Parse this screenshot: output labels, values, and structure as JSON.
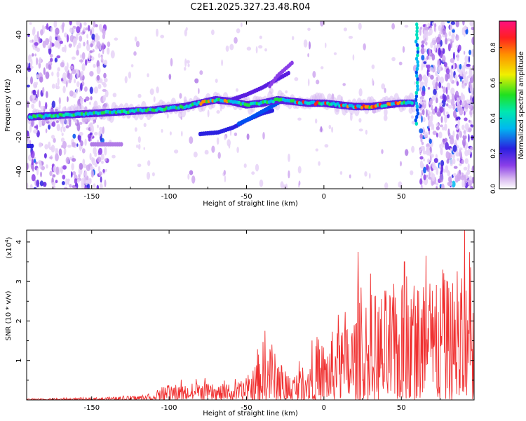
{
  "title": "C2E1.2025.327.23.48.R04",
  "chart_data": [
    {
      "type": "heatmap",
      "xlabel": "Height of straight line (km)",
      "ylabel": "Frequency (Hz)",
      "xlim": [
        -192,
        97
      ],
      "ylim": [
        -50,
        48
      ],
      "xticks": [
        -150,
        -100,
        -50,
        0,
        50
      ],
      "yticks": [
        -40,
        -20,
        0,
        20,
        40
      ],
      "ridge": {
        "x": [
          -190,
          -170,
          -150,
          -130,
          -110,
          -90,
          -80,
          -70,
          -60,
          -50,
          -40,
          -30,
          -20,
          -10,
          0,
          10,
          20,
          30,
          40,
          50,
          58
        ],
        "y": [
          -8,
          -7,
          -6,
          -5,
          -4,
          -2,
          0,
          2,
          1,
          -1,
          0,
          2,
          1,
          0,
          0,
          -1,
          -2,
          -2,
          -1,
          0,
          0
        ]
      },
      "colorbar": {
        "label": "Normalized spectral amplitude",
        "range": [
          0,
          0.95
        ],
        "ticks": [
          "0.0",
          "0.2",
          "0.4",
          "0.6",
          "0.8"
        ]
      }
    },
    {
      "type": "line",
      "xlabel": "Height of straight line (km)",
      "ylabel": "SNR (10 * v/v)",
      "scale_label": "(x10",
      "scale_exp": "4",
      "scale_close": ")",
      "xlim": [
        -192,
        97
      ],
      "ylim": [
        0,
        4.3
      ],
      "xticks": [
        -150,
        -100,
        -50,
        0,
        50
      ],
      "yticks": [
        1,
        2,
        3,
        4
      ],
      "series": [
        {
          "name": "SNR",
          "color": "#f03030",
          "envelope": {
            "x": [
              -192,
              -170,
              -150,
              -130,
              -110,
              -100,
              -90,
              -80,
              -70,
              -60,
              -52,
              -45,
              -40,
              -35,
              -30,
              -25,
              -20,
              -15,
              -10,
              -5,
              0,
              5,
              10,
              15,
              20,
              25,
              30,
              35,
              40,
              45,
              50,
              55,
              60,
              65,
              70,
              75,
              80,
              85,
              90,
              95
            ],
            "y": [
              0.02,
              0.03,
              0.04,
              0.06,
              0.12,
              0.25,
              0.3,
              0.32,
              0.28,
              0.3,
              0.35,
              0.6,
              1.1,
              1.0,
              0.8,
              0.55,
              0.5,
              0.6,
              0.9,
              1.0,
              1.1,
              1.25,
              1.35,
              1.45,
              1.7,
              1.9,
              2.0,
              2.0,
              2.05,
              2.1,
              2.15,
              2.2,
              2.2,
              2.25,
              2.3,
              2.2,
              2.2,
              2.25,
              2.2,
              2.2
            ]
          },
          "peaks": [
            {
              "x": -38,
              "y": 1.75
            },
            {
              "x": 22,
              "y": 3.75
            },
            {
              "x": 30,
              "y": 3.2
            },
            {
              "x": 52,
              "y": 3.5
            },
            {
              "x": 66,
              "y": 3.65
            },
            {
              "x": 80,
              "y": 3.0
            },
            {
              "x": 91,
              "y": 4.3
            }
          ]
        }
      ]
    }
  ]
}
